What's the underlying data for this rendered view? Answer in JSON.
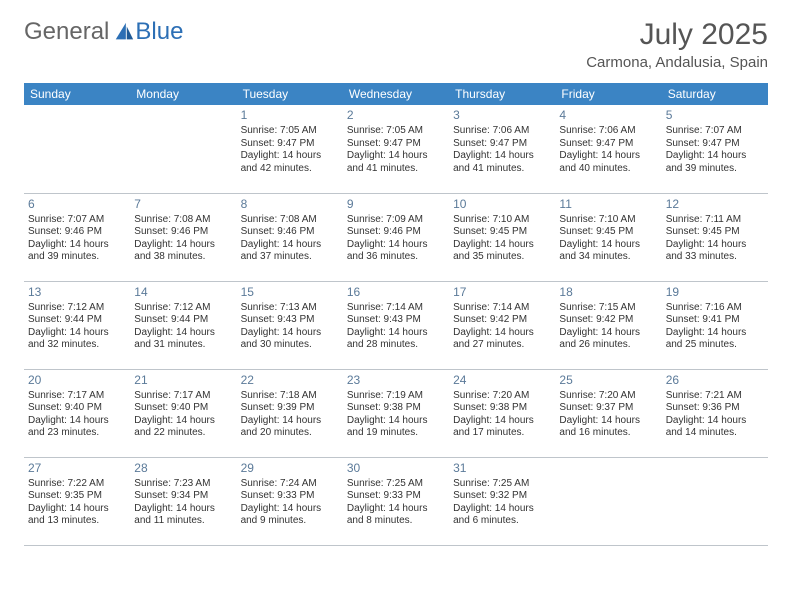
{
  "brand": {
    "part1": "General",
    "part2": "Blue"
  },
  "title": "July 2025",
  "location": "Carmona, Andalusia, Spain",
  "colors": {
    "header_bg": "#3b84c4",
    "header_text": "#ffffff",
    "daynum": "#5b7a99",
    "border": "#bfc5cb",
    "title_color": "#555555",
    "logo_blue": "#2c6fb5"
  },
  "weekdays": [
    "Sunday",
    "Monday",
    "Tuesday",
    "Wednesday",
    "Thursday",
    "Friday",
    "Saturday"
  ],
  "lead_blanks": 2,
  "days": [
    {
      "n": 1,
      "sr": "7:05 AM",
      "ss": "9:47 PM",
      "dl": "14 hours and 42 minutes."
    },
    {
      "n": 2,
      "sr": "7:05 AM",
      "ss": "9:47 PM",
      "dl": "14 hours and 41 minutes."
    },
    {
      "n": 3,
      "sr": "7:06 AM",
      "ss": "9:47 PM",
      "dl": "14 hours and 41 minutes."
    },
    {
      "n": 4,
      "sr": "7:06 AM",
      "ss": "9:47 PM",
      "dl": "14 hours and 40 minutes."
    },
    {
      "n": 5,
      "sr": "7:07 AM",
      "ss": "9:47 PM",
      "dl": "14 hours and 39 minutes."
    },
    {
      "n": 6,
      "sr": "7:07 AM",
      "ss": "9:46 PM",
      "dl": "14 hours and 39 minutes."
    },
    {
      "n": 7,
      "sr": "7:08 AM",
      "ss": "9:46 PM",
      "dl": "14 hours and 38 minutes."
    },
    {
      "n": 8,
      "sr": "7:08 AM",
      "ss": "9:46 PM",
      "dl": "14 hours and 37 minutes."
    },
    {
      "n": 9,
      "sr": "7:09 AM",
      "ss": "9:46 PM",
      "dl": "14 hours and 36 minutes."
    },
    {
      "n": 10,
      "sr": "7:10 AM",
      "ss": "9:45 PM",
      "dl": "14 hours and 35 minutes."
    },
    {
      "n": 11,
      "sr": "7:10 AM",
      "ss": "9:45 PM",
      "dl": "14 hours and 34 minutes."
    },
    {
      "n": 12,
      "sr": "7:11 AM",
      "ss": "9:45 PM",
      "dl": "14 hours and 33 minutes."
    },
    {
      "n": 13,
      "sr": "7:12 AM",
      "ss": "9:44 PM",
      "dl": "14 hours and 32 minutes."
    },
    {
      "n": 14,
      "sr": "7:12 AM",
      "ss": "9:44 PM",
      "dl": "14 hours and 31 minutes."
    },
    {
      "n": 15,
      "sr": "7:13 AM",
      "ss": "9:43 PM",
      "dl": "14 hours and 30 minutes."
    },
    {
      "n": 16,
      "sr": "7:14 AM",
      "ss": "9:43 PM",
      "dl": "14 hours and 28 minutes."
    },
    {
      "n": 17,
      "sr": "7:14 AM",
      "ss": "9:42 PM",
      "dl": "14 hours and 27 minutes."
    },
    {
      "n": 18,
      "sr": "7:15 AM",
      "ss": "9:42 PM",
      "dl": "14 hours and 26 minutes."
    },
    {
      "n": 19,
      "sr": "7:16 AM",
      "ss": "9:41 PM",
      "dl": "14 hours and 25 minutes."
    },
    {
      "n": 20,
      "sr": "7:17 AM",
      "ss": "9:40 PM",
      "dl": "14 hours and 23 minutes."
    },
    {
      "n": 21,
      "sr": "7:17 AM",
      "ss": "9:40 PM",
      "dl": "14 hours and 22 minutes."
    },
    {
      "n": 22,
      "sr": "7:18 AM",
      "ss": "9:39 PM",
      "dl": "14 hours and 20 minutes."
    },
    {
      "n": 23,
      "sr": "7:19 AM",
      "ss": "9:38 PM",
      "dl": "14 hours and 19 minutes."
    },
    {
      "n": 24,
      "sr": "7:20 AM",
      "ss": "9:38 PM",
      "dl": "14 hours and 17 minutes."
    },
    {
      "n": 25,
      "sr": "7:20 AM",
      "ss": "9:37 PM",
      "dl": "14 hours and 16 minutes."
    },
    {
      "n": 26,
      "sr": "7:21 AM",
      "ss": "9:36 PM",
      "dl": "14 hours and 14 minutes."
    },
    {
      "n": 27,
      "sr": "7:22 AM",
      "ss": "9:35 PM",
      "dl": "14 hours and 13 minutes."
    },
    {
      "n": 28,
      "sr": "7:23 AM",
      "ss": "9:34 PM",
      "dl": "14 hours and 11 minutes."
    },
    {
      "n": 29,
      "sr": "7:24 AM",
      "ss": "9:33 PM",
      "dl": "14 hours and 9 minutes."
    },
    {
      "n": 30,
      "sr": "7:25 AM",
      "ss": "9:33 PM",
      "dl": "14 hours and 8 minutes."
    },
    {
      "n": 31,
      "sr": "7:25 AM",
      "ss": "9:32 PM",
      "dl": "14 hours and 6 minutes."
    }
  ],
  "labels": {
    "sunrise": "Sunrise:",
    "sunset": "Sunset:",
    "daylight": "Daylight:"
  }
}
